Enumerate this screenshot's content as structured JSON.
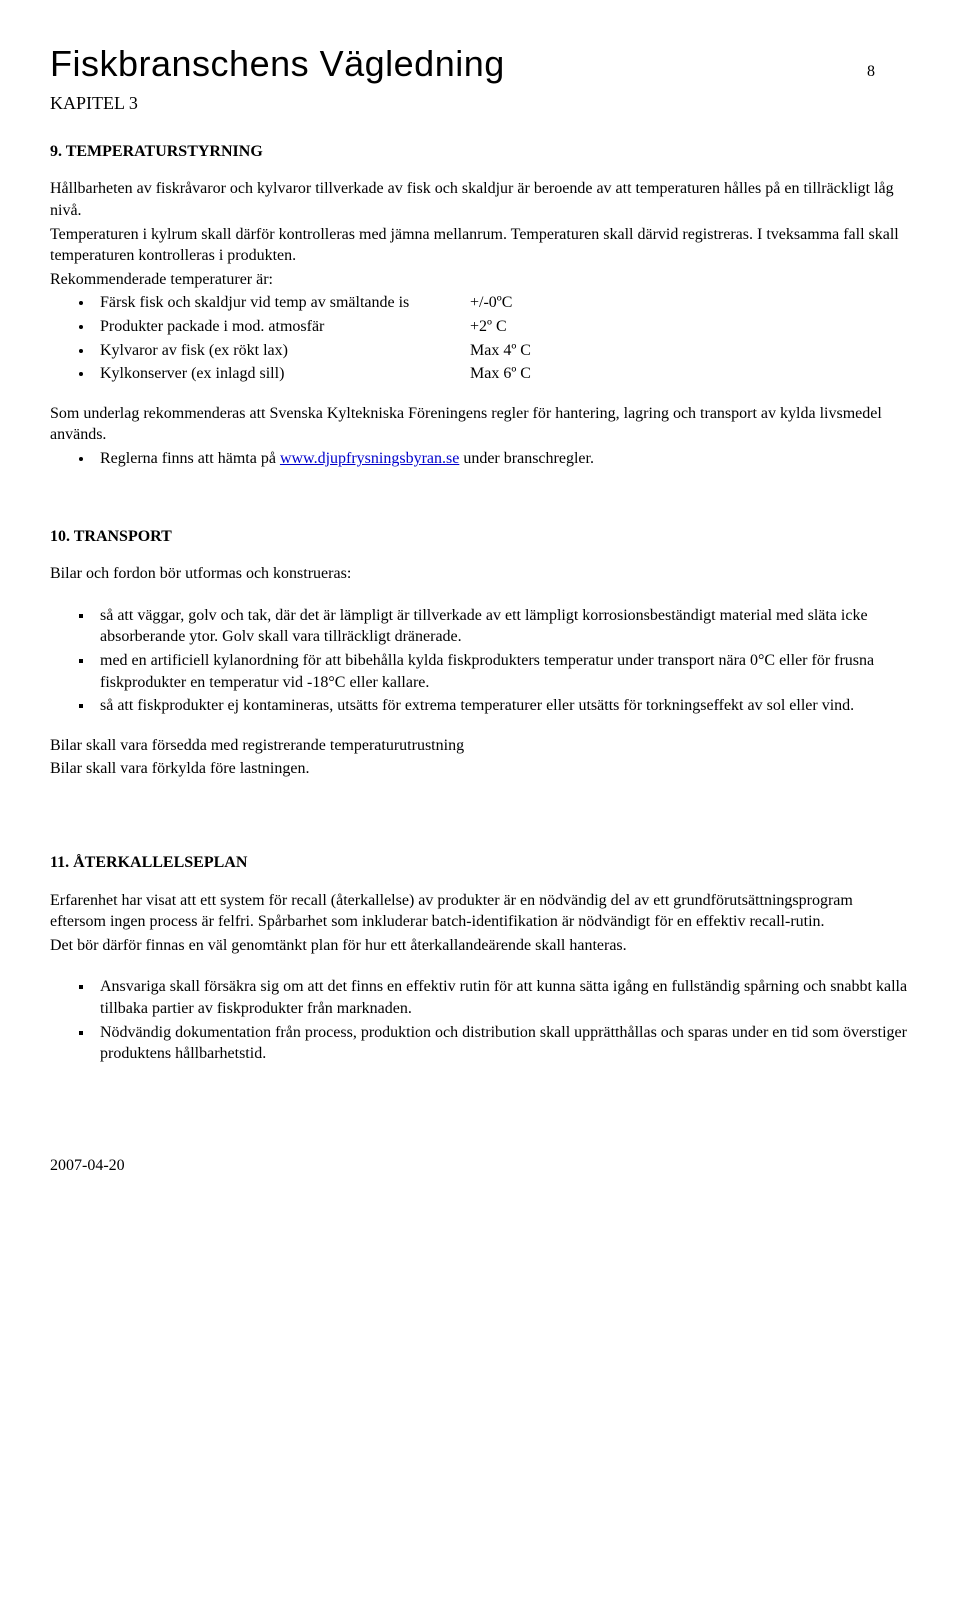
{
  "header": {
    "doc_title": "Fiskbranschens Vägledning",
    "page_number": "8",
    "chapter": "KAPITEL 3"
  },
  "section9": {
    "heading": "9. TEMPERATURSTYRNING",
    "p1": "Hållbarheten av fiskråvaror och kylvaror tillverkade av fisk och skaldjur är beroende av att temperaturen hålles på en tillräckligt låg nivå.",
    "p2": "Temperaturen i kylrum skall därför kontrolleras med jämna mellanrum. Temperaturen skall därvid registreras. I tveksamma fall skall temperaturen kontrolleras i produkten.",
    "p3": "Rekommenderade temperaturer är:",
    "temps": [
      {
        "label": "Färsk fisk och skaldjur vid temp av smältande is",
        "value": "+/-0ºC"
      },
      {
        "label": "Produkter packade i mod. atmosfär",
        "value": "+2º C"
      },
      {
        "label": "Kylvaror av fisk (ex rökt lax)",
        "value": "Max 4º C"
      },
      {
        "label": "Kylkonserver (ex inlagd sill)",
        "value": "Max 6º C"
      }
    ],
    "p4": "Som underlag rekommenderas att Svenska Kyltekniska Föreningens regler för hantering, lagring och transport av kylda livsmedel används.",
    "link_bullet_pre": "Reglerna finns att hämta på  ",
    "link1_text": "www.djupfrysningsbyran.se",
    "link_bullet_post": " under branschregler."
  },
  "section10": {
    "heading": "10. TRANSPORT",
    "intro": "Bilar och fordon bör utformas och konstrueras:",
    "bullets": [
      "så att väggar, golv och tak, där det är lämpligt är tillverkade av ett lämpligt korrosionsbeständigt material med släta icke absorberande ytor. Golv skall vara tillräckligt dränerade.",
      "med en artificiell kylanordning för att bibehålla kylda fiskprodukters temperatur under transport nära 0°C eller för frusna fiskprodukter en temperatur vid -18°C eller kallare.",
      "så att fiskprodukter ej kontamineras, utsätts för extrema temperaturer eller utsätts för torkningseffekt av sol eller vind."
    ],
    "p_after1": "Bilar skall vara försedda med registrerande temperaturutrustning",
    "p_after2": "Bilar skall vara förkylda före lastningen."
  },
  "section11": {
    "heading": "11. ÅTERKALLELSEPLAN",
    "p1": "Erfarenhet har visat att ett system för recall (återkallelse) av produkter är en nödvändig del av ett grundförutsättningsprogram eftersom ingen process är felfri. Spårbarhet som inkluderar batch-identifikation är nödvändigt för en effektiv recall-rutin.",
    "p2": "Det bör därför finnas en väl genomtänkt plan för hur ett återkallandeärende skall hanteras.",
    "bullets": [
      "Ansvariga skall försäkra sig om att det finns en effektiv rutin för att kunna sätta igång en fullständig spårning och snabbt kalla tillbaka partier av fiskprodukter från marknaden.",
      "Nödvändig dokumentation från process, produktion och distribution skall upprätthållas och sparas under en tid som överstiger produktens hållbarhetstid."
    ]
  },
  "footer": {
    "date": "2007-04-20"
  }
}
